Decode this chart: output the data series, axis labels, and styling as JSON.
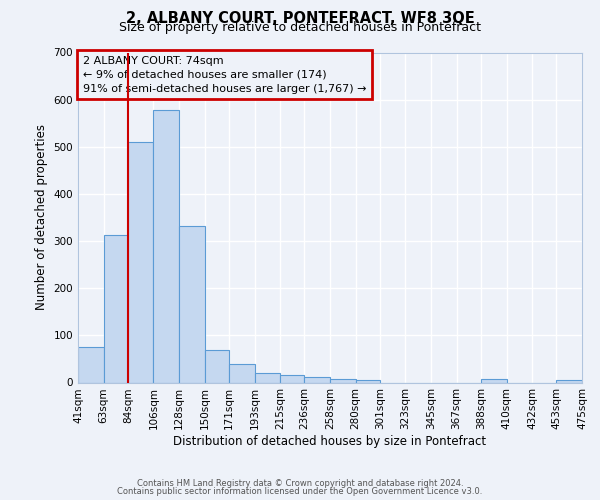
{
  "title": "2, ALBANY COURT, PONTEFRACT, WF8 3QE",
  "subtitle": "Size of property relative to detached houses in Pontefract",
  "xlabel": "Distribution of detached houses by size in Pontefract",
  "ylabel": "Number of detached properties",
  "bar_values": [
    75,
    312,
    510,
    578,
    332,
    70,
    40,
    20,
    15,
    12,
    8,
    5,
    0,
    0,
    0,
    0,
    8,
    0,
    0,
    5
  ],
  "bin_labels": [
    "41sqm",
    "63sqm",
    "84sqm",
    "106sqm",
    "128sqm",
    "150sqm",
    "171sqm",
    "193sqm",
    "215sqm",
    "236sqm",
    "258sqm",
    "280sqm",
    "301sqm",
    "323sqm",
    "345sqm",
    "367sqm",
    "388sqm",
    "410sqm",
    "432sqm",
    "453sqm",
    "475sqm"
  ],
  "bar_color": "#c5d8f0",
  "bar_edge_color": "#5b9bd5",
  "vline_x": 84,
  "vline_color": "#cc0000",
  "ylim": [
    0,
    700
  ],
  "yticks": [
    0,
    100,
    200,
    300,
    400,
    500,
    600,
    700
  ],
  "annotation_title": "2 ALBANY COURT: 74sqm",
  "annotation_line1": "← 9% of detached houses are smaller (174)",
  "annotation_line2": "91% of semi-detached houses are larger (1,767) →",
  "annotation_box_color": "#cc0000",
  "footer_line1": "Contains HM Land Registry data © Crown copyright and database right 2024.",
  "footer_line2": "Contains public sector information licensed under the Open Government Licence v3.0.",
  "background_color": "#eef2f9",
  "grid_color": "#ffffff",
  "bin_edges": [
    41,
    63,
    84,
    106,
    128,
    150,
    171,
    193,
    215,
    236,
    258,
    280,
    301,
    323,
    345,
    367,
    388,
    410,
    432,
    453,
    475
  ]
}
